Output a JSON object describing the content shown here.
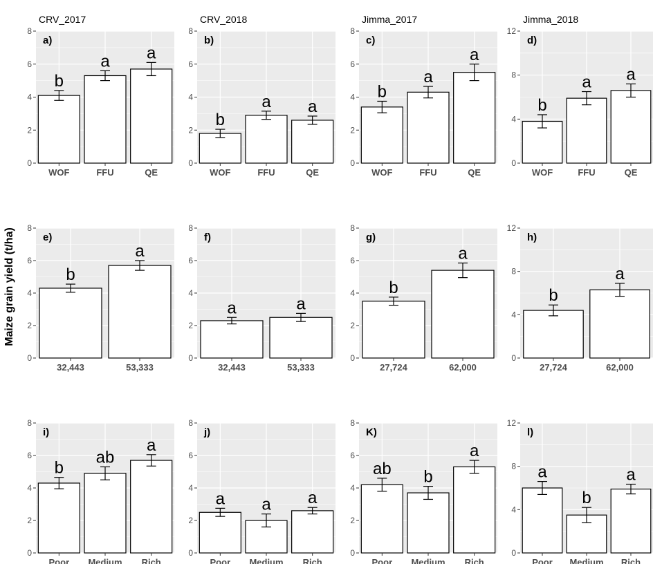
{
  "figure": {
    "ylabel": "Maize grain yield (t/ha)",
    "colors": {
      "panel_bg": "#ebebeb",
      "grid": "#ffffff",
      "bar_fill": "#ffffff",
      "bar_stroke": "#000000",
      "axis_text": "#4d4d4d",
      "letter": "#000000"
    }
  },
  "chart_data": [
    {
      "type": "bar",
      "title": "CRV_2017",
      "tag": "a)",
      "categories": [
        "WOF",
        "FFU",
        "QE"
      ],
      "values": [
        4.1,
        5.3,
        5.7
      ],
      "error": [
        0.3,
        0.3,
        0.4
      ],
      "letters": [
        "b",
        "a",
        "a"
      ],
      "ylim": [
        0,
        8
      ],
      "yticks": [
        0,
        2,
        4,
        6,
        8
      ],
      "ytick_labels": [
        "0",
        "2",
        "4",
        "6",
        "8"
      ]
    },
    {
      "type": "bar",
      "title": "CRV_2018",
      "tag": "b)",
      "categories": [
        "WOF",
        "FFU",
        "QE"
      ],
      "values": [
        1.8,
        2.9,
        2.6
      ],
      "error": [
        0.25,
        0.25,
        0.25
      ],
      "letters": [
        "b",
        "a",
        "a"
      ],
      "ylim": [
        0,
        8
      ],
      "yticks": [
        0,
        2,
        4,
        6,
        8
      ],
      "ytick_labels": [
        "0",
        "2",
        "4",
        "6",
        "8"
      ]
    },
    {
      "type": "bar",
      "title": "Jimma_2017",
      "tag": "c)",
      "categories": [
        "WOF",
        "FFU",
        "QE"
      ],
      "values": [
        3.4,
        4.3,
        5.5
      ],
      "error": [
        0.35,
        0.35,
        0.5
      ],
      "letters": [
        "b",
        "a",
        "a"
      ],
      "ylim": [
        0,
        8
      ],
      "yticks": [
        0,
        2,
        4,
        6,
        8
      ],
      "ytick_labels": [
        "0",
        "2",
        "4",
        "6",
        "8"
      ]
    },
    {
      "type": "bar",
      "title": "Jimma_2018",
      "tag": "d)",
      "categories": [
        "WOF",
        "FFU",
        "QE"
      ],
      "values": [
        3.8,
        5.9,
        6.6
      ],
      "error": [
        0.6,
        0.6,
        0.6
      ],
      "letters": [
        "b",
        "a",
        "a"
      ],
      "ylim": [
        0,
        12
      ],
      "yticks": [
        0,
        4,
        8,
        12
      ],
      "ytick_labels": [
        "0",
        "4",
        "8",
        "12"
      ]
    },
    {
      "type": "bar",
      "title": "",
      "tag": "e)",
      "categories": [
        "32,443",
        "53,333"
      ],
      "values": [
        4.3,
        5.7
      ],
      "error": [
        0.25,
        0.3
      ],
      "letters": [
        "b",
        "a"
      ],
      "ylim": [
        0,
        8
      ],
      "yticks": [
        0,
        2,
        4,
        6,
        8
      ],
      "ytick_labels": [
        "0",
        "2",
        "4",
        "6",
        "8"
      ]
    },
    {
      "type": "bar",
      "title": "",
      "tag": "f)",
      "categories": [
        "32,443",
        "53,333"
      ],
      "values": [
        2.3,
        2.5
      ],
      "error": [
        0.2,
        0.25
      ],
      "letters": [
        "a",
        "a"
      ],
      "ylim": [
        0,
        8
      ],
      "yticks": [
        0,
        2,
        4,
        6,
        8
      ],
      "ytick_labels": [
        "0",
        "2",
        "4",
        "6",
        "8"
      ]
    },
    {
      "type": "bar",
      "title": "",
      "tag": "g)",
      "categories": [
        "27,724",
        "62,000"
      ],
      "values": [
        3.5,
        5.4
      ],
      "error": [
        0.25,
        0.45
      ],
      "letters": [
        "b",
        "a"
      ],
      "ylim": [
        0,
        8
      ],
      "yticks": [
        0,
        2,
        4,
        6,
        8
      ],
      "ytick_labels": [
        "0",
        "2",
        "4",
        "6",
        "8"
      ]
    },
    {
      "type": "bar",
      "title": "",
      "tag": "h)",
      "categories": [
        "27,724",
        "62,000"
      ],
      "values": [
        4.4,
        6.3
      ],
      "error": [
        0.5,
        0.6
      ],
      "letters": [
        "b",
        "a"
      ],
      "ylim": [
        0,
        12
      ],
      "yticks": [
        0,
        4,
        8,
        12
      ],
      "ytick_labels": [
        "0",
        "4",
        "8",
        "12"
      ]
    },
    {
      "type": "bar",
      "title": "",
      "tag": "i)",
      "categories": [
        "Poor",
        "Medium",
        "Rich"
      ],
      "values": [
        4.3,
        4.9,
        5.7
      ],
      "error": [
        0.35,
        0.4,
        0.35
      ],
      "letters": [
        "b",
        "ab",
        "a"
      ],
      "ylim": [
        0,
        8
      ],
      "yticks": [
        0,
        2,
        4,
        6,
        8
      ],
      "ytick_labels": [
        "0",
        "2",
        "4",
        "6",
        "8"
      ]
    },
    {
      "type": "bar",
      "title": "",
      "tag": "j)",
      "categories": [
        "Poor",
        "Medium",
        "Rich"
      ],
      "values": [
        2.5,
        2.0,
        2.6
      ],
      "error": [
        0.25,
        0.4,
        0.2
      ],
      "letters": [
        "a",
        "a",
        "a"
      ],
      "ylim": [
        0,
        8
      ],
      "yticks": [
        0,
        2,
        4,
        6,
        8
      ],
      "ytick_labels": [
        "0",
        "2",
        "4",
        "6",
        "8"
      ]
    },
    {
      "type": "bar",
      "title": "",
      "tag": "K)",
      "categories": [
        "Poor",
        "Medium",
        "Rich"
      ],
      "values": [
        4.2,
        3.7,
        5.3
      ],
      "error": [
        0.4,
        0.4,
        0.4
      ],
      "letters": [
        "ab",
        "b",
        "a"
      ],
      "ylim": [
        0,
        8
      ],
      "yticks": [
        0,
        2,
        4,
        6,
        8
      ],
      "ytick_labels": [
        "0",
        "2",
        "4",
        "6",
        "8"
      ]
    },
    {
      "type": "bar",
      "title": "",
      "tag": "l)",
      "categories": [
        "Poor",
        "Medium",
        "Rich"
      ],
      "values": [
        6.0,
        3.5,
        5.9
      ],
      "error": [
        0.6,
        0.7,
        0.45
      ],
      "letters": [
        "a",
        "b",
        "a"
      ],
      "ylim": [
        0,
        12
      ],
      "yticks": [
        0,
        4,
        8,
        12
      ],
      "ytick_labels": [
        "0",
        "4",
        "8",
        "12"
      ]
    }
  ]
}
